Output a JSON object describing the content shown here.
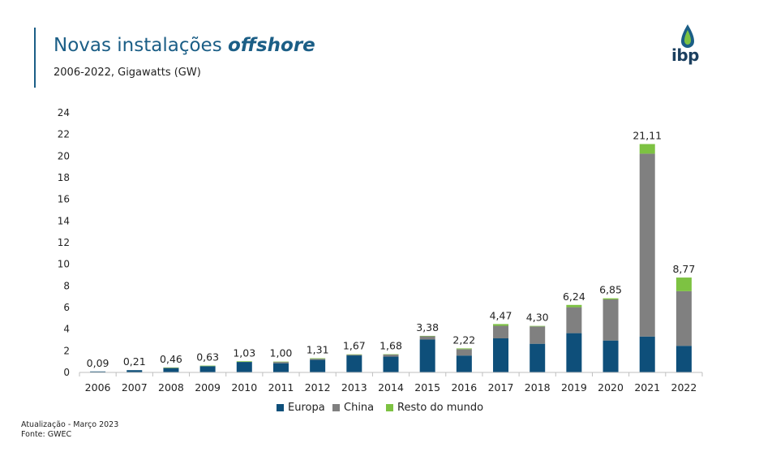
{
  "header": {
    "title_main": "Novas instalações ",
    "title_em": "offshore",
    "subtitle": "2006-2022, Gigawatts (GW)",
    "logo_text": "ibp"
  },
  "footer": {
    "update": "Atualização - Março 2023",
    "source": "Fonte: GWEC"
  },
  "colors": {
    "accent": "#1b5e86",
    "europa": "#0e4f7a",
    "china": "#808080",
    "resto": "#7dc242"
  },
  "chart_data": {
    "type": "bar",
    "stacked": true,
    "categories": [
      "2006",
      "2007",
      "2008",
      "2009",
      "2010",
      "2011",
      "2012",
      "2013",
      "2014",
      "2015",
      "2016",
      "2017",
      "2018",
      "2019",
      "2020",
      "2021",
      "2022"
    ],
    "series": [
      {
        "name": "Europa",
        "color": "#0e4f7a",
        "values": [
          0.09,
          0.21,
          0.42,
          0.58,
          0.97,
          0.85,
          1.16,
          1.57,
          1.46,
          3.04,
          1.56,
          3.15,
          2.65,
          3.63,
          2.95,
          3.32,
          2.46
        ]
      },
      {
        "name": "China",
        "color": "#808080",
        "values": [
          0.0,
          0.0,
          0.01,
          0.0,
          0.0,
          0.12,
          0.1,
          0.07,
          0.2,
          0.3,
          0.59,
          1.16,
          1.6,
          2.4,
          3.8,
          16.9,
          5.05
        ]
      },
      {
        "name": "Resto do mundo",
        "color": "#7dc242",
        "values": [
          0.0,
          0.0,
          0.03,
          0.05,
          0.06,
          0.03,
          0.05,
          0.03,
          0.02,
          0.04,
          0.07,
          0.16,
          0.05,
          0.21,
          0.1,
          0.89,
          1.26
        ]
      }
    ],
    "totals": [
      "0,09",
      "0,21",
      "0,46",
      "0,63",
      "1,03",
      "1,00",
      "1,31",
      "1,67",
      "1,68",
      "3,38",
      "2,22",
      "4,47",
      "4,30",
      "6,24",
      "6,85",
      "21,11",
      "8,77"
    ],
    "y_ticks": [
      "0",
      "2",
      "4",
      "6",
      "8",
      "10",
      "12",
      "14",
      "16",
      "18",
      "20",
      "22",
      "24"
    ],
    "ylim": [
      0,
      24
    ],
    "legend_position": "bottom",
    "grid": false
  }
}
